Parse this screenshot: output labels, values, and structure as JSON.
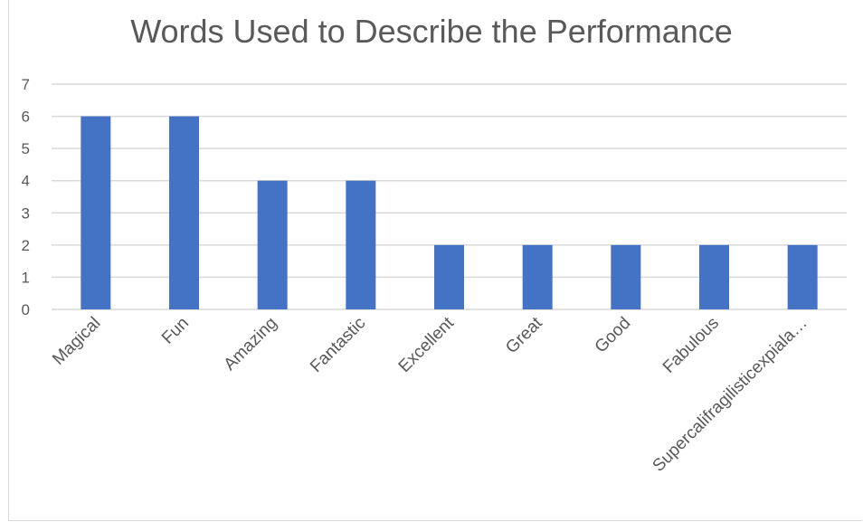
{
  "chart_data": {
    "type": "bar",
    "title": "Words Used to Describe the Performance",
    "xlabel": "",
    "ylabel": "",
    "categories": [
      "Magical",
      "Fun",
      "Amazing",
      "Fantastic",
      "Excellent",
      "Great",
      "Good",
      "Fabulous",
      "Supercalifragilisticexpiala…"
    ],
    "values": [
      6,
      6,
      4,
      4,
      2,
      2,
      2,
      2,
      2
    ],
    "ylim": [
      0,
      7
    ],
    "yticks": [
      "0",
      "1",
      "2",
      "3",
      "4",
      "5",
      "6",
      "7"
    ],
    "grid": true,
    "legend": "none",
    "bar_color": "#4472c4",
    "grid_color": "#d9d9d9"
  }
}
